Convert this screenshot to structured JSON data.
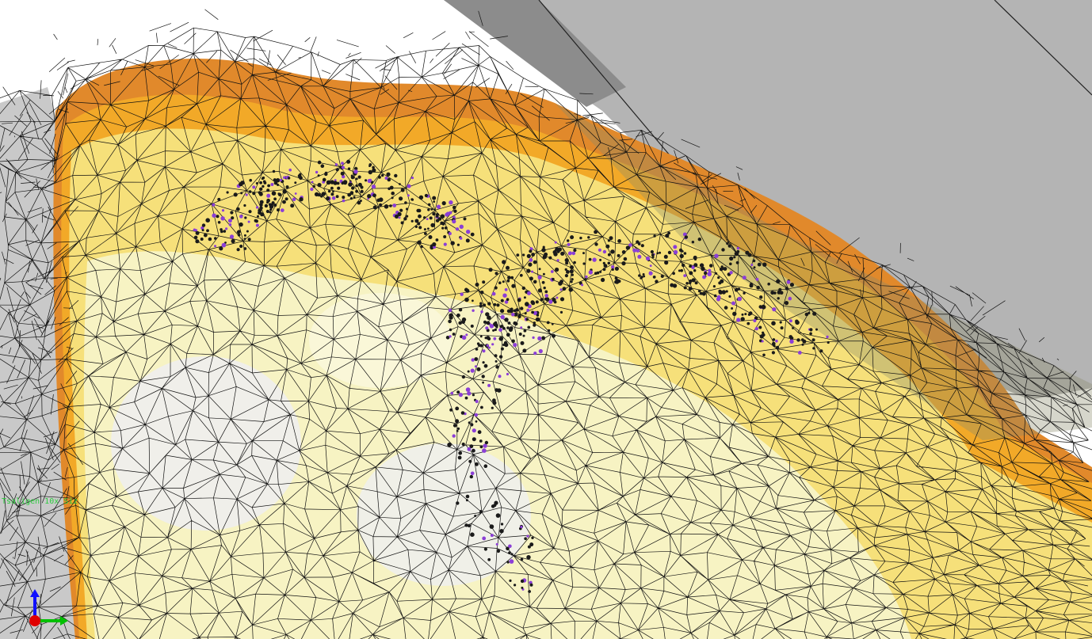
{
  "viewport": {
    "overlay_label": "Tsaligen 10x Siz",
    "colors": {
      "background": "#ffffff",
      "plate": "#b4b4b4",
      "plate_dark": "#8c8c8c",
      "surface_outer": "#e1892b",
      "surface_orange": "#f2a928",
      "surface_yellow": "#f6e07a",
      "surface_pale": "#f7f3c3",
      "surface_white": "#eeeeee",
      "wire": "#111111",
      "point_marker": "#1a1a1a",
      "point_accent": "#8b3fd6",
      "label_color": "#2ecc40"
    }
  },
  "axes_triad": {
    "x_color": "#00c000",
    "y_color": "#1010ff",
    "z_color": "#e00000"
  }
}
